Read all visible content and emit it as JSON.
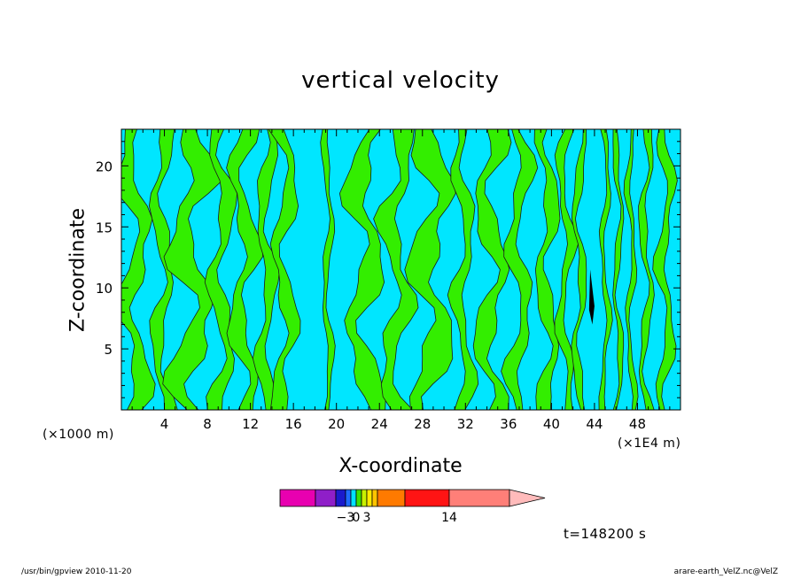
{
  "chart_data": {
    "type": "heatmap",
    "title": "vertical velocity",
    "xlabel": "X-coordinate",
    "ylabel": "Z-coordinate",
    "x_unit_left": "(×1000 m)",
    "x_unit_right": "(×1E4 m)",
    "xlim": [
      0,
      52
    ],
    "ylim": [
      0,
      23
    ],
    "x_ticks": [
      4,
      8,
      12,
      16,
      20,
      24,
      28,
      32,
      36,
      40,
      44,
      48
    ],
    "x_tick_labels": [
      "4",
      "8",
      "12",
      "16",
      "20",
      "24",
      "28",
      "32",
      "36",
      "40",
      "44",
      "48"
    ],
    "y_ticks": [
      5,
      10,
      15,
      20
    ],
    "y_tick_labels": [
      "5",
      "10",
      "15",
      "20"
    ],
    "colorbar": {
      "labels": [
        {
          "text": "−3",
          "value": -3
        },
        {
          "text": "0",
          "value": 0
        },
        {
          "text": "3",
          "value": 3
        },
        {
          "text": "14",
          "value": 14
        }
      ],
      "colors": [
        "#e800b0",
        "#8f1fc8",
        "#1a1acc",
        "#1f6bff",
        "#00e0ff",
        "#3ee000",
        "#c8f000",
        "#ffea00",
        "#ffc400",
        "#ff7a00",
        "#ff1414",
        "#ff7f78",
        "#ffbbbb"
      ]
    },
    "bands": [
      {
        "x": 1.2,
        "w": 1.8,
        "amp": 0.9
      },
      {
        "x": 3.8,
        "w": 1.2,
        "amp": 0.6
      },
      {
        "x": 6.5,
        "w": 2.6,
        "amp": 1.2
      },
      {
        "x": 9.3,
        "w": 1.4,
        "amp": 0.7
      },
      {
        "x": 11.4,
        "w": 1.6,
        "amp": 0.8
      },
      {
        "x": 13.5,
        "w": 1.2,
        "amp": 0.5
      },
      {
        "x": 15.2,
        "w": 1.4,
        "amp": 0.7
      },
      {
        "x": 19.2,
        "w": 0.6,
        "amp": 0.3
      },
      {
        "x": 22.6,
        "w": 2.2,
        "amp": 1.0
      },
      {
        "x": 25.6,
        "w": 1.8,
        "amp": 0.9
      },
      {
        "x": 28.8,
        "w": 2.6,
        "amp": 1.1
      },
      {
        "x": 31.8,
        "w": 1.2,
        "amp": 0.6
      },
      {
        "x": 34.4,
        "w": 1.8,
        "amp": 0.9
      },
      {
        "x": 37.0,
        "w": 1.4,
        "amp": 0.7
      },
      {
        "x": 39.6,
        "w": 1.3,
        "amp": 0.6
      },
      {
        "x": 41.3,
        "w": 0.9,
        "amp": 0.5
      },
      {
        "x": 42.6,
        "w": 0.7,
        "amp": 0.4
      },
      {
        "x": 45.0,
        "w": 0.5,
        "amp": 0.3
      },
      {
        "x": 46.2,
        "w": 0.5,
        "amp": 0.3
      },
      {
        "x": 47.4,
        "w": 0.5,
        "amp": 0.3
      },
      {
        "x": 48.8,
        "w": 0.7,
        "amp": 0.4
      },
      {
        "x": 50.6,
        "w": 1.0,
        "amp": 0.5
      }
    ],
    "background_color": "#00e6ff",
    "positive_color": "#33ee00",
    "negative_core_color": "#000000"
  },
  "time_label": "t=148200 s",
  "footer_left": "/usr/bin/gpview   2010-11-20",
  "footer_right": "arare-earth_VelZ.nc@VelZ"
}
